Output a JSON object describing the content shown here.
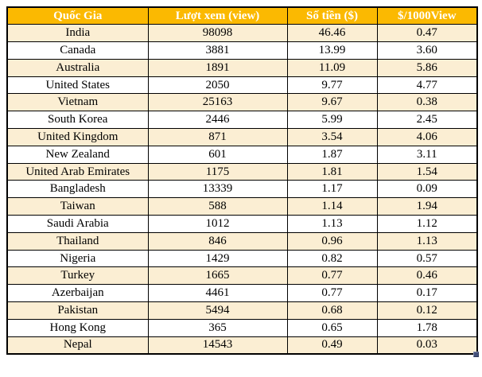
{
  "chart_data": {
    "type": "table",
    "columns": [
      "Quốc Gia",
      "Lượt xem (view)",
      "Số tiền ($)",
      "$/1000View"
    ],
    "rows": [
      [
        "India",
        "98098",
        "46.46",
        "0.47"
      ],
      [
        "Canada",
        "3881",
        "13.99",
        "3.60"
      ],
      [
        "Australia",
        "1891",
        "11.09",
        "5.86"
      ],
      [
        "United States",
        "2050",
        "9.77",
        "4.77"
      ],
      [
        "Vietnam",
        "25163",
        "9.67",
        "0.38"
      ],
      [
        "South Korea",
        "2446",
        "5.99",
        "2.45"
      ],
      [
        "United Kingdom",
        "871",
        "3.54",
        "4.06"
      ],
      [
        "New Zealand",
        "601",
        "1.87",
        "3.11"
      ],
      [
        "United Arab Emirates",
        "1175",
        "1.81",
        "1.54"
      ],
      [
        "Bangladesh",
        "13339",
        "1.17",
        "0.09"
      ],
      [
        "Taiwan",
        "588",
        "1.14",
        "1.94"
      ],
      [
        "Saudi Arabia",
        "1012",
        "1.13",
        "1.12"
      ],
      [
        "Thailand",
        "846",
        "0.96",
        "1.13"
      ],
      [
        "Nigeria",
        "1429",
        "0.82",
        "0.57"
      ],
      [
        "Turkey",
        "1665",
        "0.77",
        "0.46"
      ],
      [
        "Azerbaijan",
        "4461",
        "0.77",
        "0.17"
      ],
      [
        "Pakistan",
        "5494",
        "0.68",
        "0.12"
      ],
      [
        "Hong Kong",
        "365",
        "0.65",
        "1.78"
      ],
      [
        "Nepal",
        "14543",
        "0.49",
        "0.03"
      ]
    ]
  },
  "icons": {
    "resize_handle": "drag-resize-corner-square"
  },
  "colors": {
    "header_bg": "#FBB901",
    "header_text": "#FFFFFF",
    "row_alt_bg": "#FBEED3",
    "row_bg": "#FFFFFF",
    "border": "#000000",
    "body_text": "#000000",
    "handle": "#45517B",
    "page_bg": "#FFFFFF"
  }
}
